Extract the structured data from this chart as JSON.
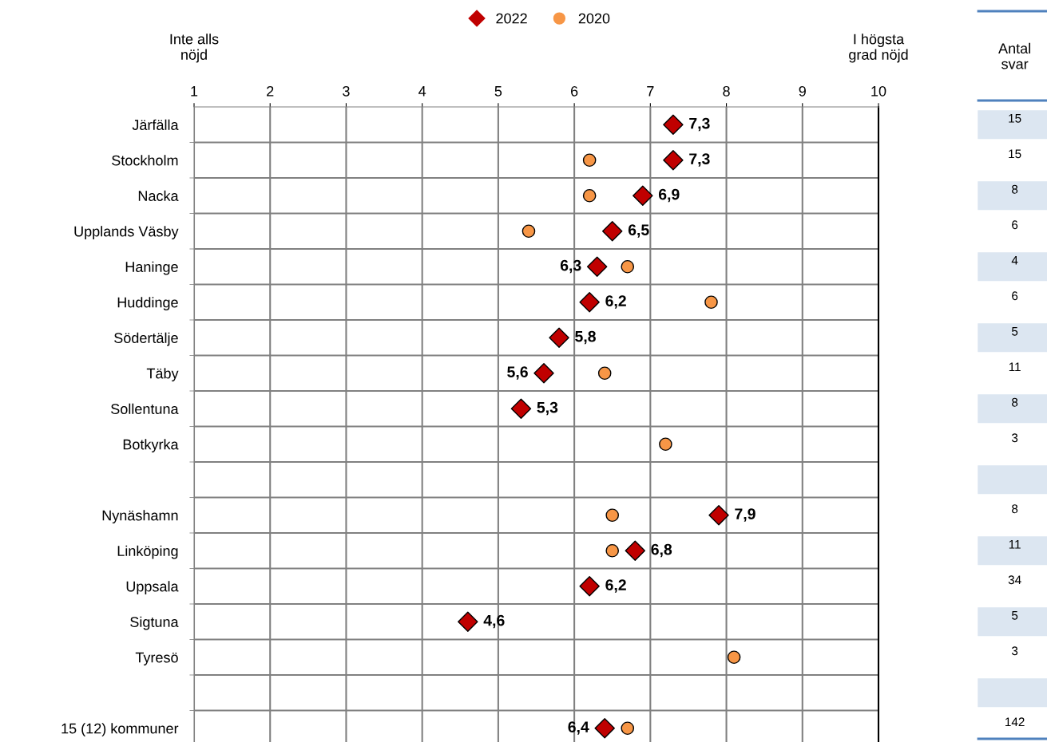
{
  "chart_data": {
    "type": "scatter",
    "orientation": "horizontal",
    "categories": [
      "Järfälla",
      "Stockholm",
      "Nacka",
      "Upplands Väsby",
      "Haninge",
      "Huddinge",
      "Södertälje",
      "Täby",
      "Sollentuna",
      "Botkyrka",
      null,
      "Nynäshamn",
      "Linköping",
      "Uppsala",
      "Sigtuna",
      "Tyresö",
      null,
      "15 (12) kommuner"
    ],
    "y2_categories": [
      "15",
      "15",
      "8",
      "6",
      "4",
      "6",
      "5",
      "11",
      "8",
      "3",
      null,
      "8",
      "11",
      "34",
      "5",
      "3",
      null,
      "142"
    ],
    "series": [
      {
        "name": "2022",
        "color": "#c00000",
        "marker": "diamond",
        "values": [
          7.3,
          7.3,
          6.9,
          6.5,
          6.3,
          6.2,
          5.8,
          5.6,
          5.3,
          null,
          null,
          7.9,
          6.8,
          6.2,
          4.6,
          null,
          null,
          6.4
        ],
        "value_labels": [
          "7,3",
          "7,3",
          "6,9",
          "6,5",
          "6,3",
          "6,2",
          "5,8",
          "5,6",
          "5,3",
          null,
          null,
          "7,9",
          "6,8",
          "6,2",
          "4,6",
          null,
          null,
          "6,4"
        ]
      },
      {
        "name": "2020",
        "color": "#f79646",
        "marker": "circle",
        "values": [
          null,
          6.2,
          6.2,
          5.4,
          6.7,
          7.8,
          null,
          6.4,
          null,
          7.2,
          null,
          6.5,
          6.5,
          null,
          null,
          8.1,
          null,
          6.7
        ]
      }
    ],
    "xlim": [
      1,
      10
    ],
    "xticks": [
      1,
      2,
      3,
      4,
      5,
      6,
      7,
      8,
      9,
      10
    ],
    "grid": true,
    "legend": "top",
    "annotations": [
      "Inte alls\nnöjd",
      "I högsta\ngrad nöjd",
      "Antal\nsvar"
    ]
  }
}
